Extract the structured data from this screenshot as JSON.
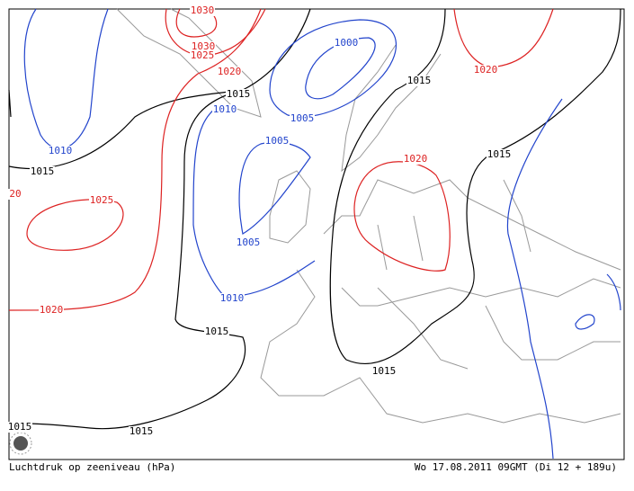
{
  "map": {
    "isobar_labels": [
      {
        "text": "1030",
        "color": "#d22"
      },
      {
        "text": "1030",
        "color": "#d22"
      },
      {
        "text": "1025",
        "color": "#d22"
      },
      {
        "text": "1020",
        "color": "#d22"
      },
      {
        "text": "1000",
        "color": "#2244cc"
      },
      {
        "text": "1005",
        "color": "#2244cc"
      },
      {
        "text": "1010",
        "color": "#2244cc"
      },
      {
        "text": "1015",
        "color": "#000"
      },
      {
        "text": "1015",
        "color": "#000"
      },
      {
        "text": "1020",
        "color": "#d22"
      },
      {
        "text": "1010",
        "color": "#2244cc"
      },
      {
        "text": "1015",
        "color": "#000"
      },
      {
        "text": "1005",
        "color": "#2244cc"
      },
      {
        "text": "1020",
        "color": "#d22"
      },
      {
        "text": "1015",
        "color": "#000"
      },
      {
        "text": "20",
        "color": "#d22"
      },
      {
        "text": "1025",
        "color": "#d22"
      },
      {
        "text": "1005",
        "color": "#2244cc"
      },
      {
        "text": "1010",
        "color": "#2244cc"
      },
      {
        "text": "1020",
        "color": "#d22"
      },
      {
        "text": "1015",
        "color": "#000"
      },
      {
        "text": "1015",
        "color": "#000"
      },
      {
        "text": "1015",
        "color": "#000"
      },
      {
        "text": "1015",
        "color": "#000"
      }
    ],
    "footer_left": "Luchtdruk op zeeniveau (hPa)",
    "footer_right": "Wo 17.08.2011 09GMT (Di 12 + 189u)"
  }
}
